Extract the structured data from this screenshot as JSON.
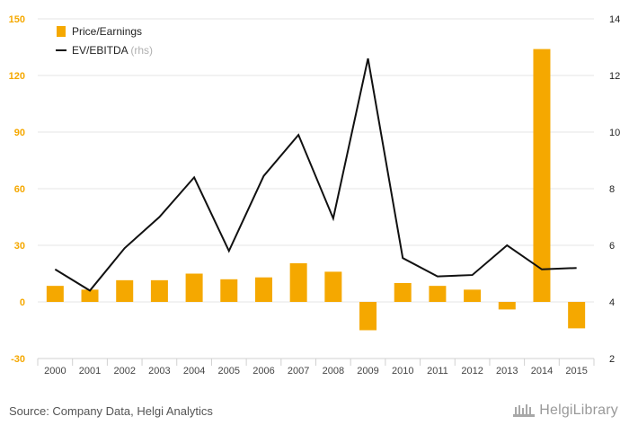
{
  "chart_data": {
    "type": "bar+line",
    "categories": [
      "2000",
      "2001",
      "2002",
      "2003",
      "2004",
      "2005",
      "2006",
      "2007",
      "2008",
      "2009",
      "2010",
      "2011",
      "2012",
      "2013",
      "2014",
      "2015"
    ],
    "series": [
      {
        "name": "Price/Earnings",
        "type": "bar",
        "axis": "left",
        "color": "#f5a800",
        "values": [
          8.5,
          6.5,
          11.5,
          11.5,
          15,
          12,
          13,
          20.5,
          16,
          -15,
          10,
          8.5,
          6.5,
          -4,
          134,
          -14
        ]
      },
      {
        "name": "EV/EBITDA",
        "suffix": "(rhs)",
        "type": "line",
        "axis": "right",
        "color": "#111111",
        "values": [
          5.15,
          4.4,
          5.9,
          7.0,
          8.4,
          5.8,
          8.45,
          9.9,
          6.95,
          12.6,
          5.55,
          4.9,
          4.95,
          6.0,
          5.15,
          5.2
        ]
      }
    ],
    "y_left": {
      "min": -30,
      "max": 150,
      "ticks": [
        -30,
        0,
        30,
        60,
        90,
        120,
        150
      ],
      "color": "#f5a800"
    },
    "y_right": {
      "min": 2,
      "max": 14,
      "ticks": [
        2,
        4,
        6,
        8,
        10,
        12,
        14
      ],
      "color": "#222222"
    },
    "grid": true,
    "legend_position": "top-left"
  },
  "footer": {
    "source": "Source: Company Data, Helgi Analytics",
    "brand": "HelgiLibrary"
  }
}
